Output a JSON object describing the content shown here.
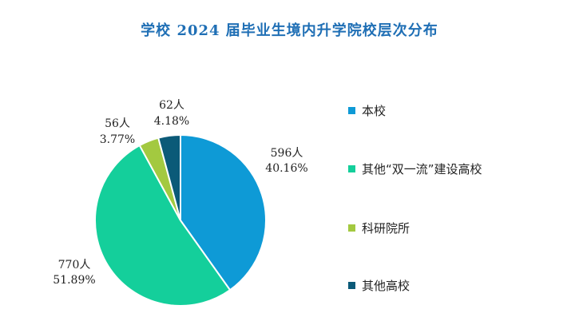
{
  "chart_data": {
    "type": "pie",
    "title": "学校 2024 届毕业生境内升学院校层次分布",
    "categories": [
      "本校",
      "其他“双一流”建设高校",
      "科研院所",
      "其他高校"
    ],
    "values": [
      596,
      770,
      56,
      62
    ],
    "percent_labels": [
      "40.16%",
      "51.89%",
      "3.77%",
      "4.18%"
    ],
    "count_labels": [
      "596人",
      "770人",
      "56人",
      "62人"
    ],
    "colors": [
      "#0e9ad6",
      "#14cf9b",
      "#a3c940",
      "#0b5a78"
    ],
    "legend_position": "right"
  }
}
